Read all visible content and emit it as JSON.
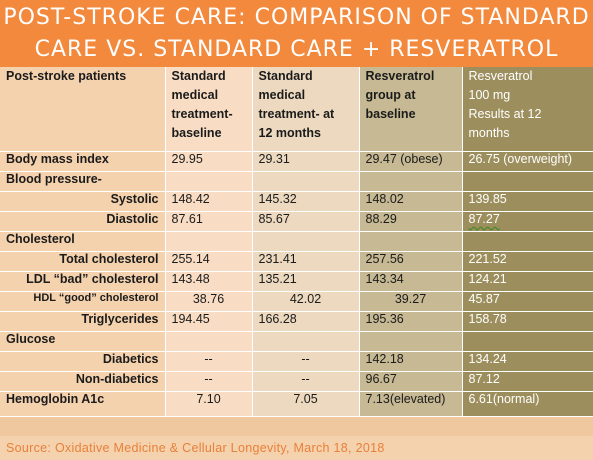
{
  "title": {
    "line1": "POST-STROKE CARE: COMPARISON OF STANDARD",
    "line2": "CARE VS. STANDARD CARE + RESVERATROL"
  },
  "columns": [
    "Post-stroke patients",
    "Standard medical treatment- baseline",
    "Standard medical treatment- at 12 months",
    "Resveratrol group at baseline",
    "Resveratrol 100 mg Results at 12 months"
  ],
  "header": {
    "c0": [
      "Post-stroke patients"
    ],
    "c1": [
      "Standard",
      "medical",
      "treatment-",
      "baseline"
    ],
    "c2": [
      "Standard",
      "medical",
      "treatment- at",
      "12 months"
    ],
    "c3": [
      "Resveratrol",
      "group at",
      "baseline"
    ],
    "c4": [
      "Resveratrol",
      "100 mg",
      "Results at 12",
      "months"
    ]
  },
  "rows": {
    "bmi": {
      "label": "Body mass index",
      "v": [
        "29.95",
        "29.31",
        "29.47 (obese)",
        "26.75 (overweight)"
      ]
    },
    "bp": {
      "label": "Blood pressure-"
    },
    "systolic": {
      "label": "Systolic",
      "v": [
        "148.42",
        "145.32",
        "148.02",
        "139.85"
      ]
    },
    "diastolic": {
      "label": "Diastolic",
      "v": [
        "87.61",
        "85.67",
        "88.29",
        "87.27"
      ]
    },
    "chol": {
      "label": "Cholesterol"
    },
    "total": {
      "label": "Total cholesterol",
      "v": [
        "255.14",
        "231.41",
        "257.56",
        "221.52"
      ]
    },
    "ldl": {
      "label": "LDL “bad” cholesterol",
      "v": [
        "143.48",
        "135.21",
        "143.34",
        "124.21"
      ]
    },
    "hdl": {
      "label": "HDL “good” cholesterol",
      "v": [
        "38.76",
        "42.02",
        "39.27",
        "45.87"
      ]
    },
    "trig": {
      "label": "Triglycerides",
      "v": [
        "194.45",
        "166.28",
        "195.36",
        "158.78"
      ]
    },
    "glucose": {
      "label": "Glucose"
    },
    "diabetics": {
      "label": "Diabetics",
      "v": [
        "--",
        "--",
        "142.18",
        "134.24"
      ]
    },
    "nondiabetics": {
      "label": "Non-diabetics",
      "v": [
        "--",
        "--",
        "96.67",
        "87.12"
      ]
    },
    "a1c": {
      "label": "Hemoglobin A1c",
      "v": [
        "7.10",
        "7.05",
        "7.13(elevated)",
        "6.61(normal)"
      ]
    }
  },
  "source": "Source: Oxidative Medicine & Cellular Longevity, March 18, 2018",
  "colors": {
    "banner": "#f2893c",
    "col_labels": "#f5d2ae",
    "col_std_baseline": "#f8ddc4",
    "col_std_12m": "#ecd9bf",
    "col_res_baseline": "#c6b993",
    "col_res_12m": "#9c8f5d"
  }
}
